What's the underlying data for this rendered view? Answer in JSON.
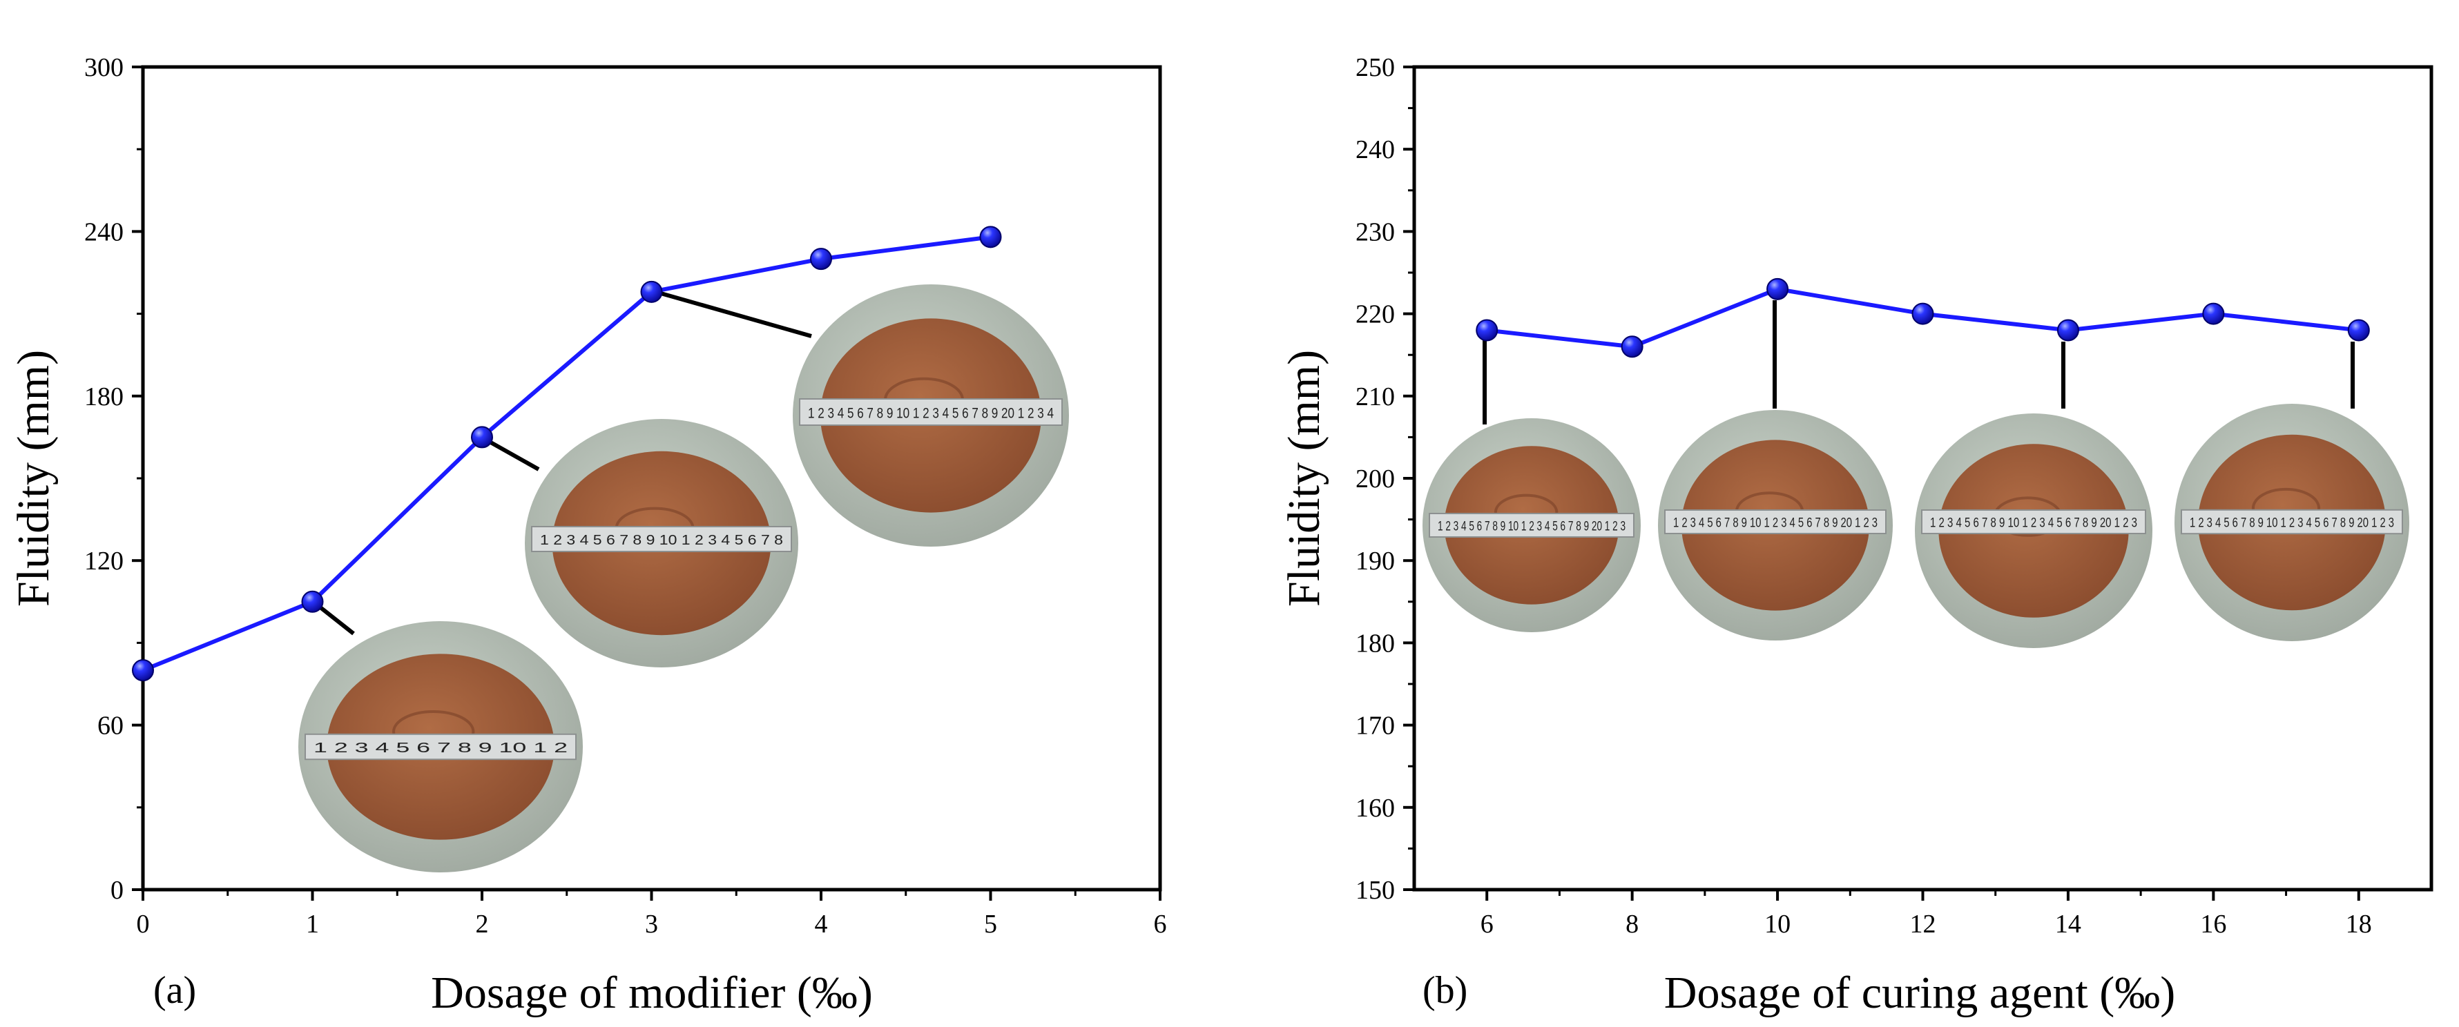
{
  "chart_data": [
    {
      "type": "line",
      "panel_label": "(a)",
      "xlabel": "Dosage of modifier (‰)",
      "ylabel": "Fluidity (mm)",
      "xlim": [
        0,
        6
      ],
      "ylim": [
        0,
        300
      ],
      "x_ticks": [
        0,
        1,
        2,
        3,
        4,
        5,
        6
      ],
      "y_ticks": [
        0,
        60,
        120,
        180,
        240,
        300
      ],
      "series": [
        {
          "name": "Fluidity",
          "color": "#1a1aff",
          "x": [
            0,
            1,
            2,
            3,
            4,
            5
          ],
          "values": [
            80,
            105,
            165,
            218,
            230,
            238
          ]
        }
      ],
      "photos": [
        {
          "point_index": 1,
          "diameter": 105,
          "ruler": "1 2 3 4 5 6 7 8 9 10 1 2"
        },
        {
          "point_index": 2,
          "diameter": 165,
          "ruler": "1 2 3 4 5 6 7 8 9 10 1 2 3 4 5 6 7 8"
        },
        {
          "point_index": 3,
          "diameter": 218,
          "ruler": "1 2 3 4 5 6 7 8 9 10 1 2 3 4 5 6 7 8 9 20 1 2 3 4"
        }
      ]
    },
    {
      "type": "line",
      "panel_label": "(b)",
      "xlabel": "Dosage of curing agent (‰)",
      "ylabel": "Fluidity (mm)",
      "xlim": [
        5,
        19
      ],
      "ylim": [
        150,
        250
      ],
      "x_ticks": [
        6,
        8,
        10,
        12,
        14,
        16,
        18
      ],
      "y_ticks": [
        150,
        160,
        170,
        180,
        190,
        200,
        210,
        220,
        230,
        240,
        250
      ],
      "series": [
        {
          "name": "Fluidity",
          "color": "#1a1aff",
          "x": [
            6,
            8,
            10,
            12,
            14,
            16,
            18
          ],
          "values": [
            218,
            216,
            223,
            220,
            218,
            220,
            218
          ]
        }
      ],
      "photos": [
        {
          "point_index": 0,
          "diameter": 218,
          "ruler": "1 2 3 4 5 6 7 8 9 10 1 2 3 4 5 6 7 8 9 20 1 2 3"
        },
        {
          "point_index": 2,
          "diameter": 223,
          "ruler": "1 2 3 4 5 6 7 8 9 10 1 2 3 4 5 6 7 8 9 20 1 2 3"
        },
        {
          "point_index": 4,
          "diameter": 218,
          "ruler": "1 2 3 4 5 6 7 8 9 10 1 2 3 4 5 6 7 8 9 20 1 2 3"
        },
        {
          "point_index": 6,
          "diameter": 218,
          "ruler": "1 2 3 4 5 6 7 8 9 10 1 2 3 4 5 6 7 8 9 20 1 2 3"
        }
      ]
    }
  ]
}
